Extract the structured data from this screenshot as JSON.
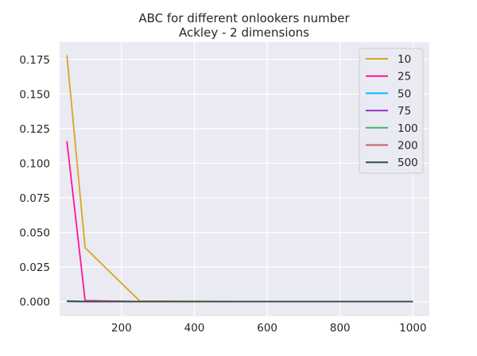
{
  "chart_data": {
    "type": "line",
    "title": "ABC for different onlookers number",
    "subtitle": "Ackley - 2 dimensions",
    "xlabel": "",
    "ylabel": "",
    "xlim": [
      30,
      1045
    ],
    "ylim": [
      -0.0105,
      0.1875
    ],
    "xticks": [
      200,
      400,
      600,
      800,
      1000
    ],
    "xtick_labels": [
      "200",
      "400",
      "600",
      "800",
      "1000"
    ],
    "yticks": [
      0.0,
      0.025,
      0.05,
      0.075,
      0.1,
      0.125,
      0.15,
      0.175
    ],
    "ytick_labels": [
      "0.000",
      "0.025",
      "0.050",
      "0.075",
      "0.100",
      "0.125",
      "0.150",
      "0.175"
    ],
    "grid": true,
    "legend_position": "top-right",
    "series": [
      {
        "name": "10",
        "color": "#DAA520",
        "x": [
          50,
          100,
          250,
          500,
          1000
        ],
        "y": [
          0.178,
          0.039,
          0.0005,
          0.0002,
          0.0001
        ]
      },
      {
        "name": "25",
        "color": "#FF1493",
        "x": [
          50,
          100,
          250,
          500,
          1000
        ],
        "y": [
          0.116,
          0.0008,
          0.0002,
          0.0001,
          0.0001
        ]
      },
      {
        "name": "50",
        "color": "#00BFFF",
        "x": [
          50,
          100,
          250,
          500,
          1000
        ],
        "y": [
          0.0005,
          0.0002,
          0.0001,
          0.0001,
          0.0001
        ]
      },
      {
        "name": "75",
        "color": "#9932CC",
        "x": [
          50,
          100,
          250,
          500,
          1000
        ],
        "y": [
          0.0004,
          0.0002,
          0.0001,
          0.0001,
          0.0001
        ]
      },
      {
        "name": "100",
        "color": "#3CB371",
        "x": [
          50,
          100,
          250,
          500,
          1000
        ],
        "y": [
          0.0004,
          0.0002,
          0.0001,
          0.0001,
          0.0001
        ]
      },
      {
        "name": "200",
        "color": "#CD5C5C",
        "x": [
          50,
          100,
          250,
          500,
          1000
        ],
        "y": [
          0.0003,
          0.0001,
          0.0001,
          0.0001,
          0.0001
        ]
      },
      {
        "name": "500",
        "color": "#2F4F4F",
        "x": [
          50,
          100,
          250,
          500,
          1000
        ],
        "y": [
          0.0003,
          0.0001,
          0.0001,
          0.0001,
          0.0001
        ]
      }
    ]
  }
}
